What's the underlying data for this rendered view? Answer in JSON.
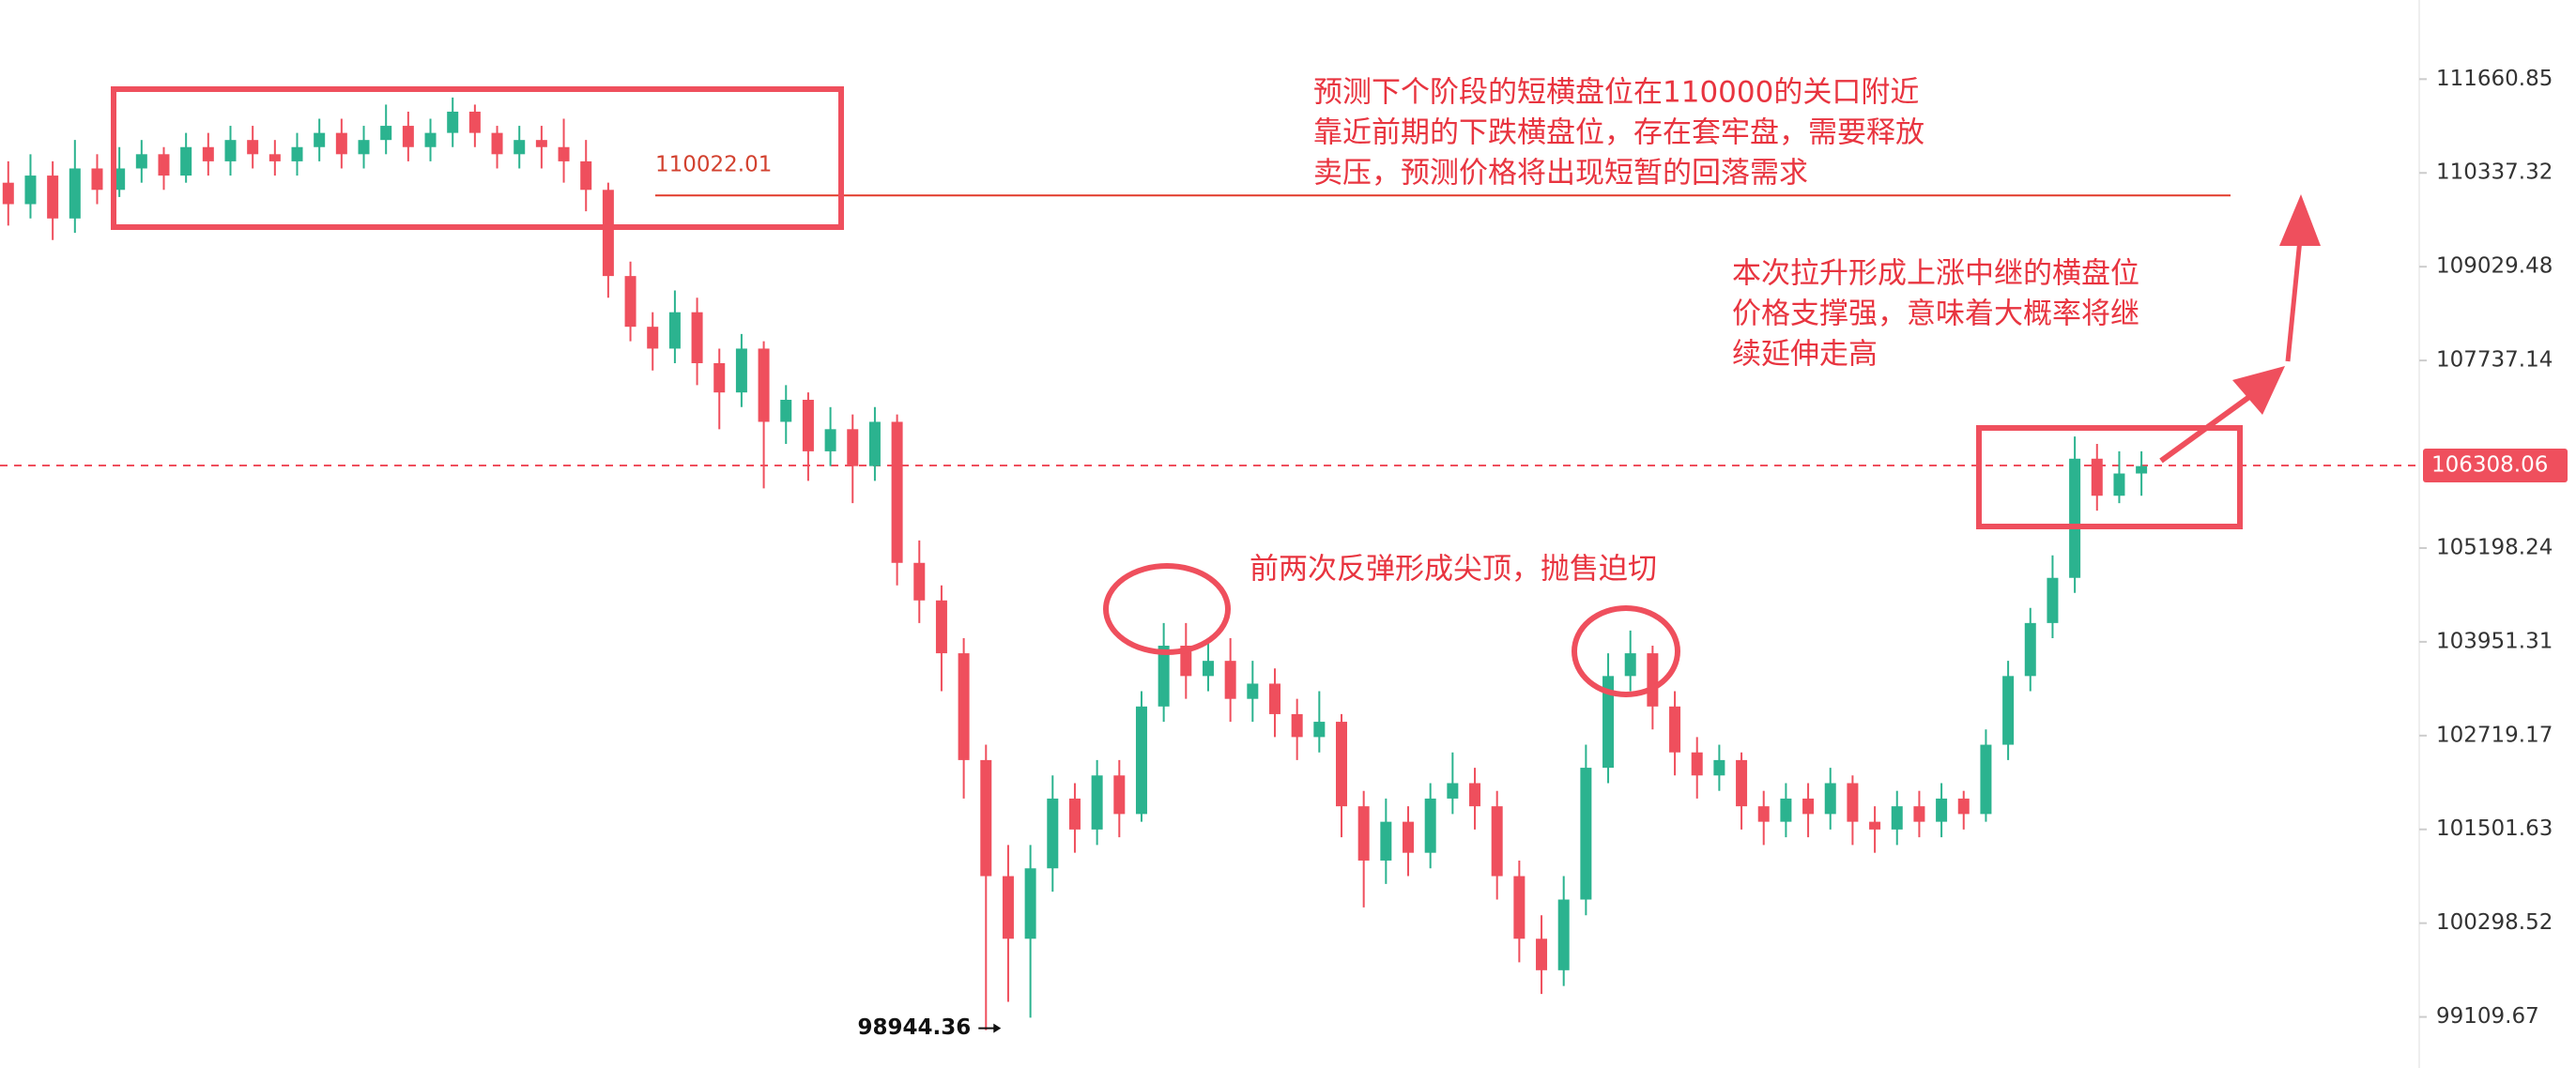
{
  "chart_data": {
    "type": "candlestick",
    "up_color": "#2bb38f",
    "down_color": "#ef4f5d",
    "log_scale": true,
    "grid": false,
    "ylim": [
      98680,
      112790
    ],
    "yticks": [
      111660.85,
      110337.32,
      109029.48,
      107737.14,
      105198.24,
      103951.31,
      102719.17,
      101501.63,
      100298.52,
      99109.67
    ],
    "last_price": 106308.06,
    "horizontal_line": 110022.01,
    "open": [
      110200,
      109900,
      110300,
      109700,
      110400,
      110100,
      110400,
      110600,
      110300,
      110700,
      110500,
      110800,
      110600,
      110500,
      110700,
      110900,
      110600,
      110800,
      111000,
      110700,
      110900,
      111200,
      110900,
      110600,
      110800,
      110700,
      110500,
      110100,
      108900,
      108200,
      107900,
      108400,
      107700,
      107300,
      107900,
      106900,
      107200,
      106500,
      106800,
      106300,
      106900,
      105000,
      104500,
      103800,
      102400,
      100900,
      100100,
      101000,
      101900,
      101500,
      102200,
      101700,
      103100,
      103900,
      103500,
      103700,
      103200,
      103400,
      103000,
      102700,
      102900,
      101800,
      101100,
      101600,
      101200,
      101900,
      102100,
      101800,
      100900,
      100100,
      99700,
      100600,
      102300,
      103500,
      103800,
      103100,
      102500,
      102200,
      102400,
      101800,
      101600,
      101900,
      101700,
      102100,
      101600,
      101500,
      101800,
      101600,
      101900,
      101700,
      102600,
      103500,
      104200,
      104800,
      106400,
      105900,
      106200
    ],
    "high": [
      110500,
      110600,
      110500,
      110800,
      110600,
      110700,
      110800,
      110700,
      110900,
      110900,
      111000,
      111000,
      110800,
      110900,
      111100,
      111100,
      111000,
      111300,
      111200,
      111100,
      111400,
      111300,
      111000,
      111000,
      111000,
      111100,
      110800,
      110200,
      109100,
      108400,
      108700,
      108600,
      107900,
      108100,
      108000,
      107400,
      107300,
      107100,
      107000,
      107100,
      107000,
      105300,
      104700,
      104000,
      102600,
      101300,
      101300,
      102200,
      102100,
      102400,
      102400,
      103300,
      104200,
      104200,
      104000,
      104000,
      103700,
      103600,
      103200,
      103300,
      103000,
      102000,
      101900,
      101800,
      102100,
      102500,
      102300,
      102000,
      101100,
      100400,
      100900,
      102600,
      103800,
      104100,
      103900,
      103300,
      102700,
      102600,
      102500,
      102000,
      102100,
      102100,
      102300,
      102200,
      101800,
      102000,
      102000,
      102100,
      102000,
      102800,
      103700,
      104400,
      105100,
      106700,
      106600,
      106500,
      106500
    ],
    "low": [
      109600,
      109700,
      109400,
      109500,
      109900,
      110000,
      110200,
      110100,
      110200,
      110300,
      110300,
      110400,
      110300,
      110300,
      110500,
      110400,
      110400,
      110600,
      110500,
      110500,
      110700,
      110700,
      110400,
      110400,
      110400,
      110200,
      109800,
      108600,
      108000,
      107600,
      107700,
      107400,
      106800,
      107100,
      106000,
      106600,
      106100,
      106300,
      105800,
      106100,
      104700,
      104200,
      103300,
      101900,
      98944.36,
      99300,
      99100,
      100700,
      101200,
      101300,
      101400,
      101600,
      102900,
      103200,
      103300,
      102900,
      102900,
      102700,
      102400,
      102500,
      101400,
      100500,
      100800,
      100900,
      101000,
      101700,
      101500,
      100600,
      99800,
      99400,
      99500,
      100400,
      102100,
      103300,
      102800,
      102200,
      101900,
      102000,
      101500,
      101300,
      101400,
      101400,
      101500,
      101300,
      101200,
      101300,
      101400,
      101400,
      101500,
      101600,
      102400,
      103300,
      104000,
      104600,
      105700,
      105800,
      105900
    ],
    "close": [
      109900,
      110300,
      109700,
      110400,
      110100,
      110400,
      110600,
      110300,
      110700,
      110500,
      110800,
      110600,
      110500,
      110700,
      110900,
      110600,
      110800,
      111000,
      110700,
      110900,
      111200,
      110900,
      110600,
      110800,
      110700,
      110500,
      110100,
      108900,
      108200,
      107900,
      108400,
      107700,
      107300,
      107900,
      106900,
      107200,
      106500,
      106800,
      106300,
      106900,
      105000,
      104500,
      103800,
      102400,
      100900,
      100100,
      101000,
      101900,
      101500,
      102200,
      101700,
      103100,
      103900,
      103500,
      103700,
      103200,
      103400,
      103000,
      102700,
      102900,
      101800,
      101100,
      101600,
      101200,
      101900,
      102100,
      101800,
      100900,
      100100,
      99700,
      100600,
      102300,
      103500,
      103800,
      103100,
      102500,
      102200,
      102400,
      101800,
      101600,
      101900,
      101700,
      102100,
      101600,
      101500,
      101800,
      101600,
      101900,
      101700,
      102600,
      103500,
      104200,
      104800,
      106400,
      105900,
      106200,
      106300
    ],
    "annotations": [
      [
        "预测下个阶段的短横盘位在110000的关口附近",
        "靠近前期的下跌横盘位，存在套牢盘，需要释放",
        "卖压，预测价格将出现短暂的回落需求"
      ],
      [
        "本次拉升形成上涨中继的横盘位",
        "价格支撑强，意味着大概率将继",
        "续延伸走高"
      ],
      [
        "前两次反弹形成尖顶，抛售迫切"
      ]
    ]
  }
}
